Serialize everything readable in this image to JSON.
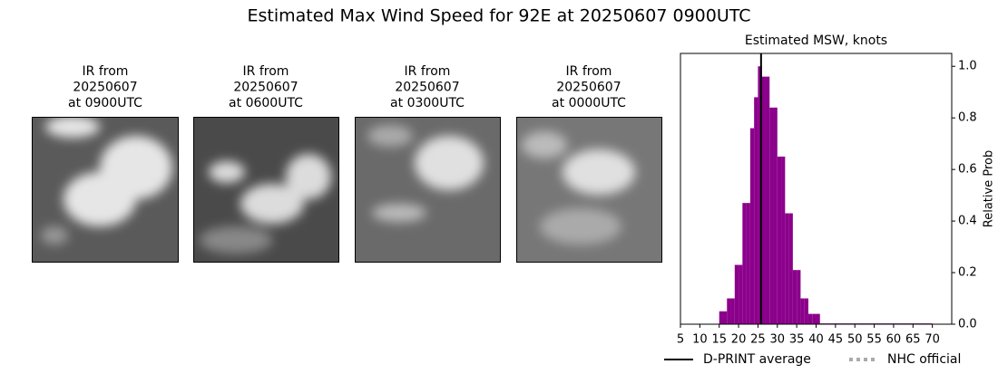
{
  "title": "Estimated Max Wind Speed for 92E at 20250607 0900UTC",
  "panels": [
    {
      "lines": [
        "IR from",
        "20250607",
        "at 0900UTC"
      ]
    },
    {
      "lines": [
        "IR from",
        "20250607",
        "at 0600UTC"
      ]
    },
    {
      "lines": [
        "IR from",
        "20250607",
        "at 0300UTC"
      ]
    },
    {
      "lines": [
        "IR from",
        "20250607",
        "at 0000UTC"
      ]
    }
  ],
  "chart_data": {
    "type": "histogram",
    "title": "Estimated MSW, knots",
    "y_label": "Relative Prob",
    "bins": [
      15,
      16,
      17,
      18,
      19,
      20,
      21,
      22,
      23,
      24,
      25,
      26,
      27,
      28,
      29,
      30,
      31,
      32,
      33,
      34,
      35,
      36,
      37,
      38,
      39,
      40,
      41,
      70
    ],
    "values": [
      0.05,
      0.05,
      0.1,
      0.1,
      0.23,
      0.23,
      0.47,
      0.47,
      0.76,
      0.88,
      1.0,
      0.96,
      0.96,
      0.84,
      0.84,
      0.65,
      0.65,
      0.43,
      0.43,
      0.21,
      0.21,
      0.1,
      0.1,
      0.04,
      0.04,
      0.04,
      0.003
    ],
    "color": "#8b008b",
    "dprint_average": 25.8,
    "series": [
      {
        "name": "D-PRINT average",
        "color": "#000000"
      },
      {
        "name": "NHC official",
        "color": "#aaaaaa"
      }
    ],
    "xlim": [
      5,
      75
    ],
    "xticks": [
      5,
      10,
      15,
      20,
      25,
      30,
      35,
      40,
      45,
      50,
      55,
      60,
      65,
      70
    ],
    "ylim": [
      0,
      1.05
    ],
    "yticks": [
      {
        "value": 0,
        "label": "0.0"
      },
      {
        "value": 0.2,
        "label": "0.2"
      },
      {
        "value": 0.4,
        "label": "0.4"
      },
      {
        "value": 0.6,
        "label": "0.6"
      },
      {
        "value": 0.8,
        "label": "0.8"
      },
      {
        "value": 1.0,
        "label": "1.0"
      }
    ]
  }
}
